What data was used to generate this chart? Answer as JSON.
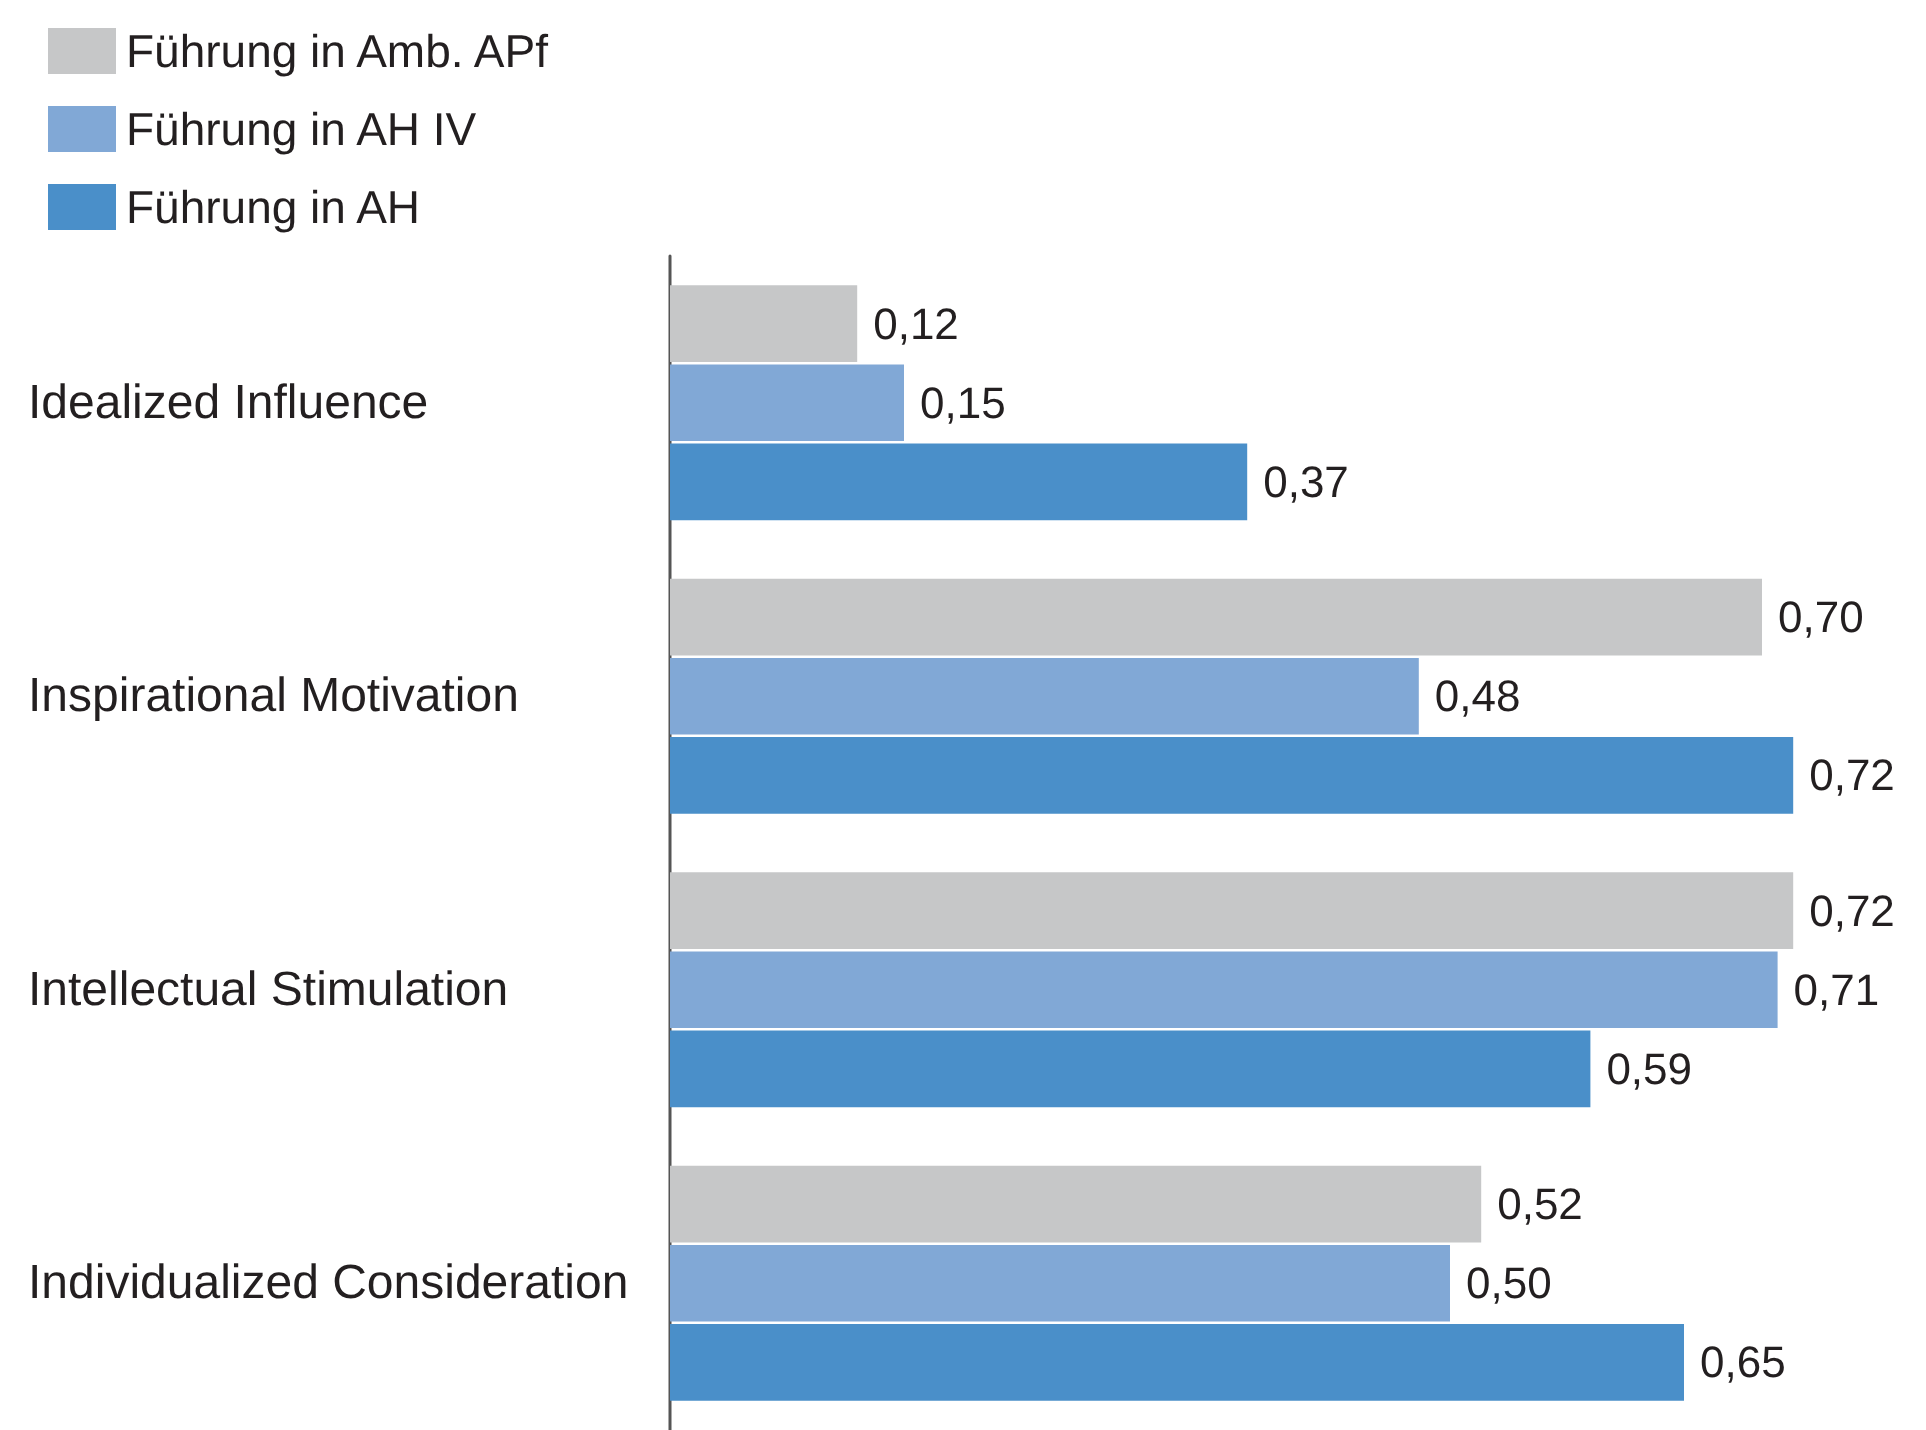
{
  "chart_data": {
    "type": "bar",
    "orientation": "horizontal",
    "legend": "top left",
    "grid": false,
    "tick_labels": "y",
    "categories": [
      "Idealized Influence",
      "Inspirational Motivation",
      "Intellectual Stimulation",
      "Individualized Consideration"
    ],
    "series": [
      {
        "name": "Führung in Amb. APf",
        "color": "#c6c7c8",
        "values": [
          0.12,
          0.7,
          0.72,
          0.52
        ],
        "value_labels": [
          "0,12",
          "0,70",
          "0,72",
          "0,52"
        ]
      },
      {
        "name": "Führung in AH IV",
        "color": "#81a8d6",
        "values": [
          0.15,
          0.48,
          0.71,
          0.5
        ],
        "value_labels": [
          "0,15",
          "0,48",
          "0,71",
          "0,50"
        ]
      },
      {
        "name": "Führung in AH",
        "color": "#4a8fc9",
        "values": [
          0.37,
          0.72,
          0.59,
          0.65
        ],
        "value_labels": [
          "0,37",
          "0,72",
          "0,59",
          "0,65"
        ]
      }
    ]
  }
}
